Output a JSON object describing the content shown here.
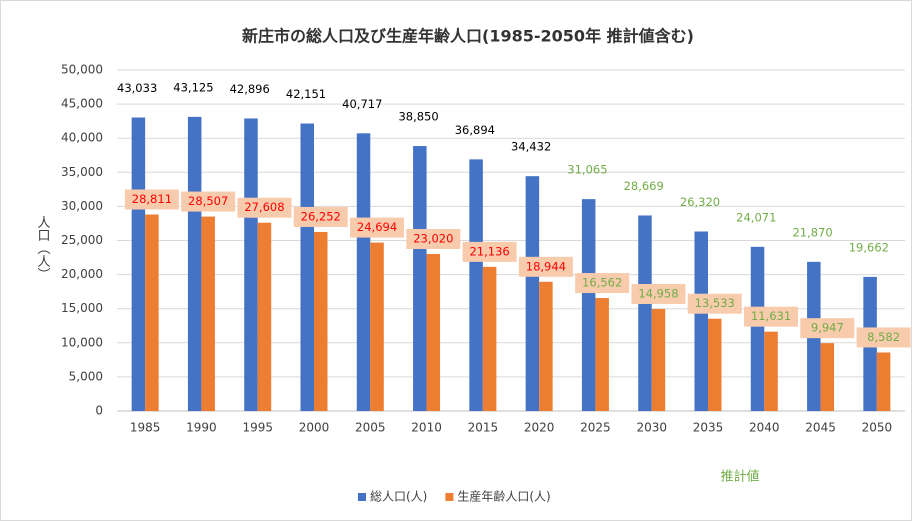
{
  "chart_data": {
    "type": "bar",
    "title": "新庄市の総人口及び生産年齢人口(1985-2050年 推計値含む)",
    "y_label": "人口（人）",
    "annotation": "推計値",
    "categories": [
      "1985",
      "1990",
      "1995",
      "2000",
      "2005",
      "2010",
      "2015",
      "2020",
      "2025",
      "2030",
      "2035",
      "2040",
      "2045",
      "2050"
    ],
    "series": [
      {
        "name": "総人口(人)",
        "color": "#4472c4",
        "values": [
          43033,
          43125,
          42896,
          42151,
          40717,
          38850,
          36894,
          34432,
          31065,
          28669,
          26320,
          24071,
          21870,
          19662
        ],
        "value_labels": [
          "43,033",
          "43,125",
          "42,896",
          "42,151",
          "40,717",
          "38,850",
          "36,894",
          "34,432",
          "31,065",
          "28,669",
          "26,320",
          "24,071",
          "21,870",
          "19,662"
        ],
        "value_label_colors": [
          "#000000",
          "#000000",
          "#000000",
          "#000000",
          "#000000",
          "#000000",
          "#000000",
          "#000000",
          "#70ad47",
          "#70ad47",
          "#70ad47",
          "#70ad47",
          "#70ad47",
          "#70ad47"
        ]
      },
      {
        "name": "生産年齢人口(人)",
        "color": "#ed7d31",
        "values": [
          28811,
          28507,
          27608,
          26252,
          24694,
          23020,
          21136,
          18944,
          16562,
          14958,
          13533,
          11631,
          9947,
          8582
        ],
        "value_labels": [
          "28,811",
          "28,507",
          "27,608",
          "26,252",
          "24,694",
          "23,020",
          "21,136",
          "18,944",
          "16,562",
          "14,958",
          "13,533",
          "11,631",
          "9,947",
          "8,582"
        ],
        "value_label_colors": [
          "#ff0000",
          "#ff0000",
          "#ff0000",
          "#ff0000",
          "#ff0000",
          "#ff0000",
          "#ff0000",
          "#ff0000",
          "#70ad47",
          "#70ad47",
          "#70ad47",
          "#70ad47",
          "#70ad47",
          "#70ad47"
        ],
        "value_label_box": "#f8cbad"
      }
    ],
    "ylim": [
      0,
      50000
    ],
    "yticks": [
      0,
      {
        "value": 5000,
        "label": "5,000"
      },
      {
        "value": 10000,
        "label": "10,000"
      },
      {
        "value": 15000,
        "label": "15,000"
      },
      {
        "value": 20000,
        "label": "20,000"
      },
      {
        "value": 25000,
        "label": "25,000"
      },
      {
        "value": 30000,
        "label": "30,000"
      },
      {
        "value": 35000,
        "label": "35,000"
      },
      {
        "value": 40000,
        "label": "40,000"
      },
      {
        "value": 45000,
        "label": "45,000"
      },
      {
        "value": 50000,
        "label": "50,000"
      }
    ],
    "grid": true,
    "legend": "bottom"
  }
}
